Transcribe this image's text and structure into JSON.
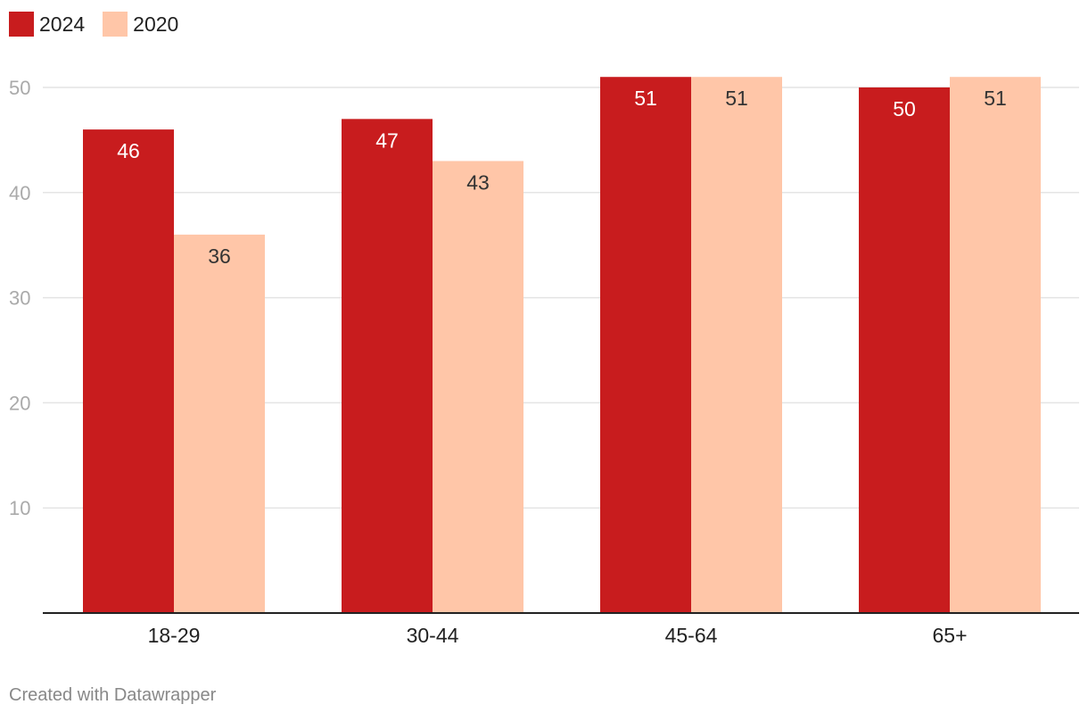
{
  "colors": {
    "series_2024": "#c81c1e",
    "series_2020": "#ffc6a8",
    "grid": "#e4e4e4",
    "axis": "#222222",
    "tick_label": "#aaaaaa",
    "category_label": "#222222",
    "label_on_dark": "#ffffff",
    "label_on_light": "#333333"
  },
  "footer": {
    "credit": "Created with Datawrapper"
  },
  "chart_data": {
    "type": "bar",
    "categories": [
      "18-29",
      "30-44",
      "45-64",
      "65+"
    ],
    "series": [
      {
        "name": "2024",
        "values": [
          46,
          47,
          51,
          50
        ]
      },
      {
        "name": "2020",
        "values": [
          36,
          43,
          51,
          51
        ]
      }
    ],
    "yticks": [
      10,
      20,
      30,
      40,
      50
    ],
    "ylim": [
      0,
      55
    ],
    "grid": true,
    "legend": "top-left",
    "data_labels": true
  }
}
